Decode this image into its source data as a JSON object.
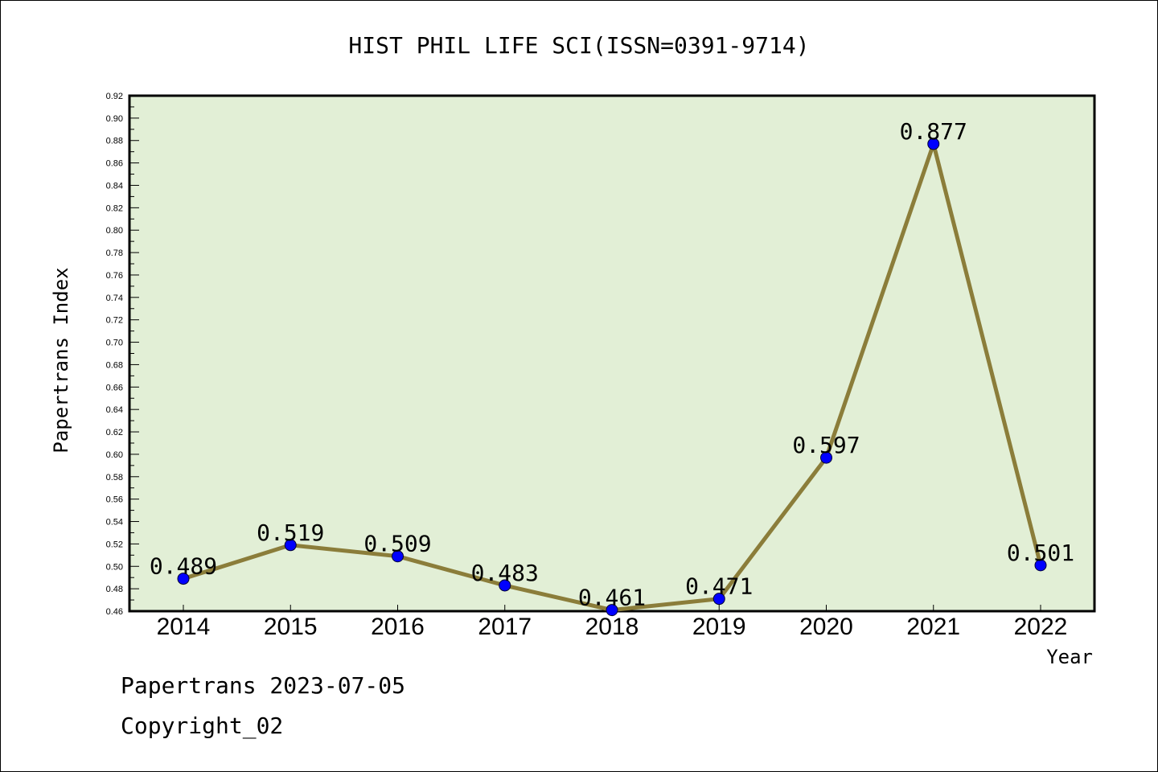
{
  "chart_data": {
    "type": "line",
    "title": "HIST PHIL LIFE SCI(ISSN=0391-9714)",
    "xlabel": "Year",
    "ylabel": "Papertrans Index",
    "categories": [
      "2014",
      "2015",
      "2016",
      "2017",
      "2018",
      "2019",
      "2020",
      "2021",
      "2022"
    ],
    "values": [
      0.489,
      0.519,
      0.509,
      0.483,
      0.461,
      0.471,
      0.597,
      0.877,
      0.501
    ],
    "value_labels": [
      "0.489",
      "0.519",
      "0.509",
      "0.483",
      "0.461",
      "0.471",
      "0.597",
      "0.877",
      "0.501"
    ],
    "ylim": [
      0.46,
      0.92
    ],
    "yticks": [
      "0.46",
      "0.48",
      "0.50",
      "0.52",
      "0.54",
      "0.56",
      "0.58",
      "0.60",
      "0.62",
      "0.64",
      "0.66",
      "0.68",
      "0.70",
      "0.72",
      "0.74",
      "0.76",
      "0.78",
      "0.80",
      "0.82",
      "0.84",
      "0.86",
      "0.88",
      "0.90",
      "0.92"
    ],
    "grid": false,
    "colors": {
      "plot_background": "#e2efd6",
      "line": "#8b7d3a",
      "marker": "#0000ff"
    }
  },
  "footer": {
    "line1": "Papertrans 2023-07-05",
    "line2": "Copyright_02"
  }
}
